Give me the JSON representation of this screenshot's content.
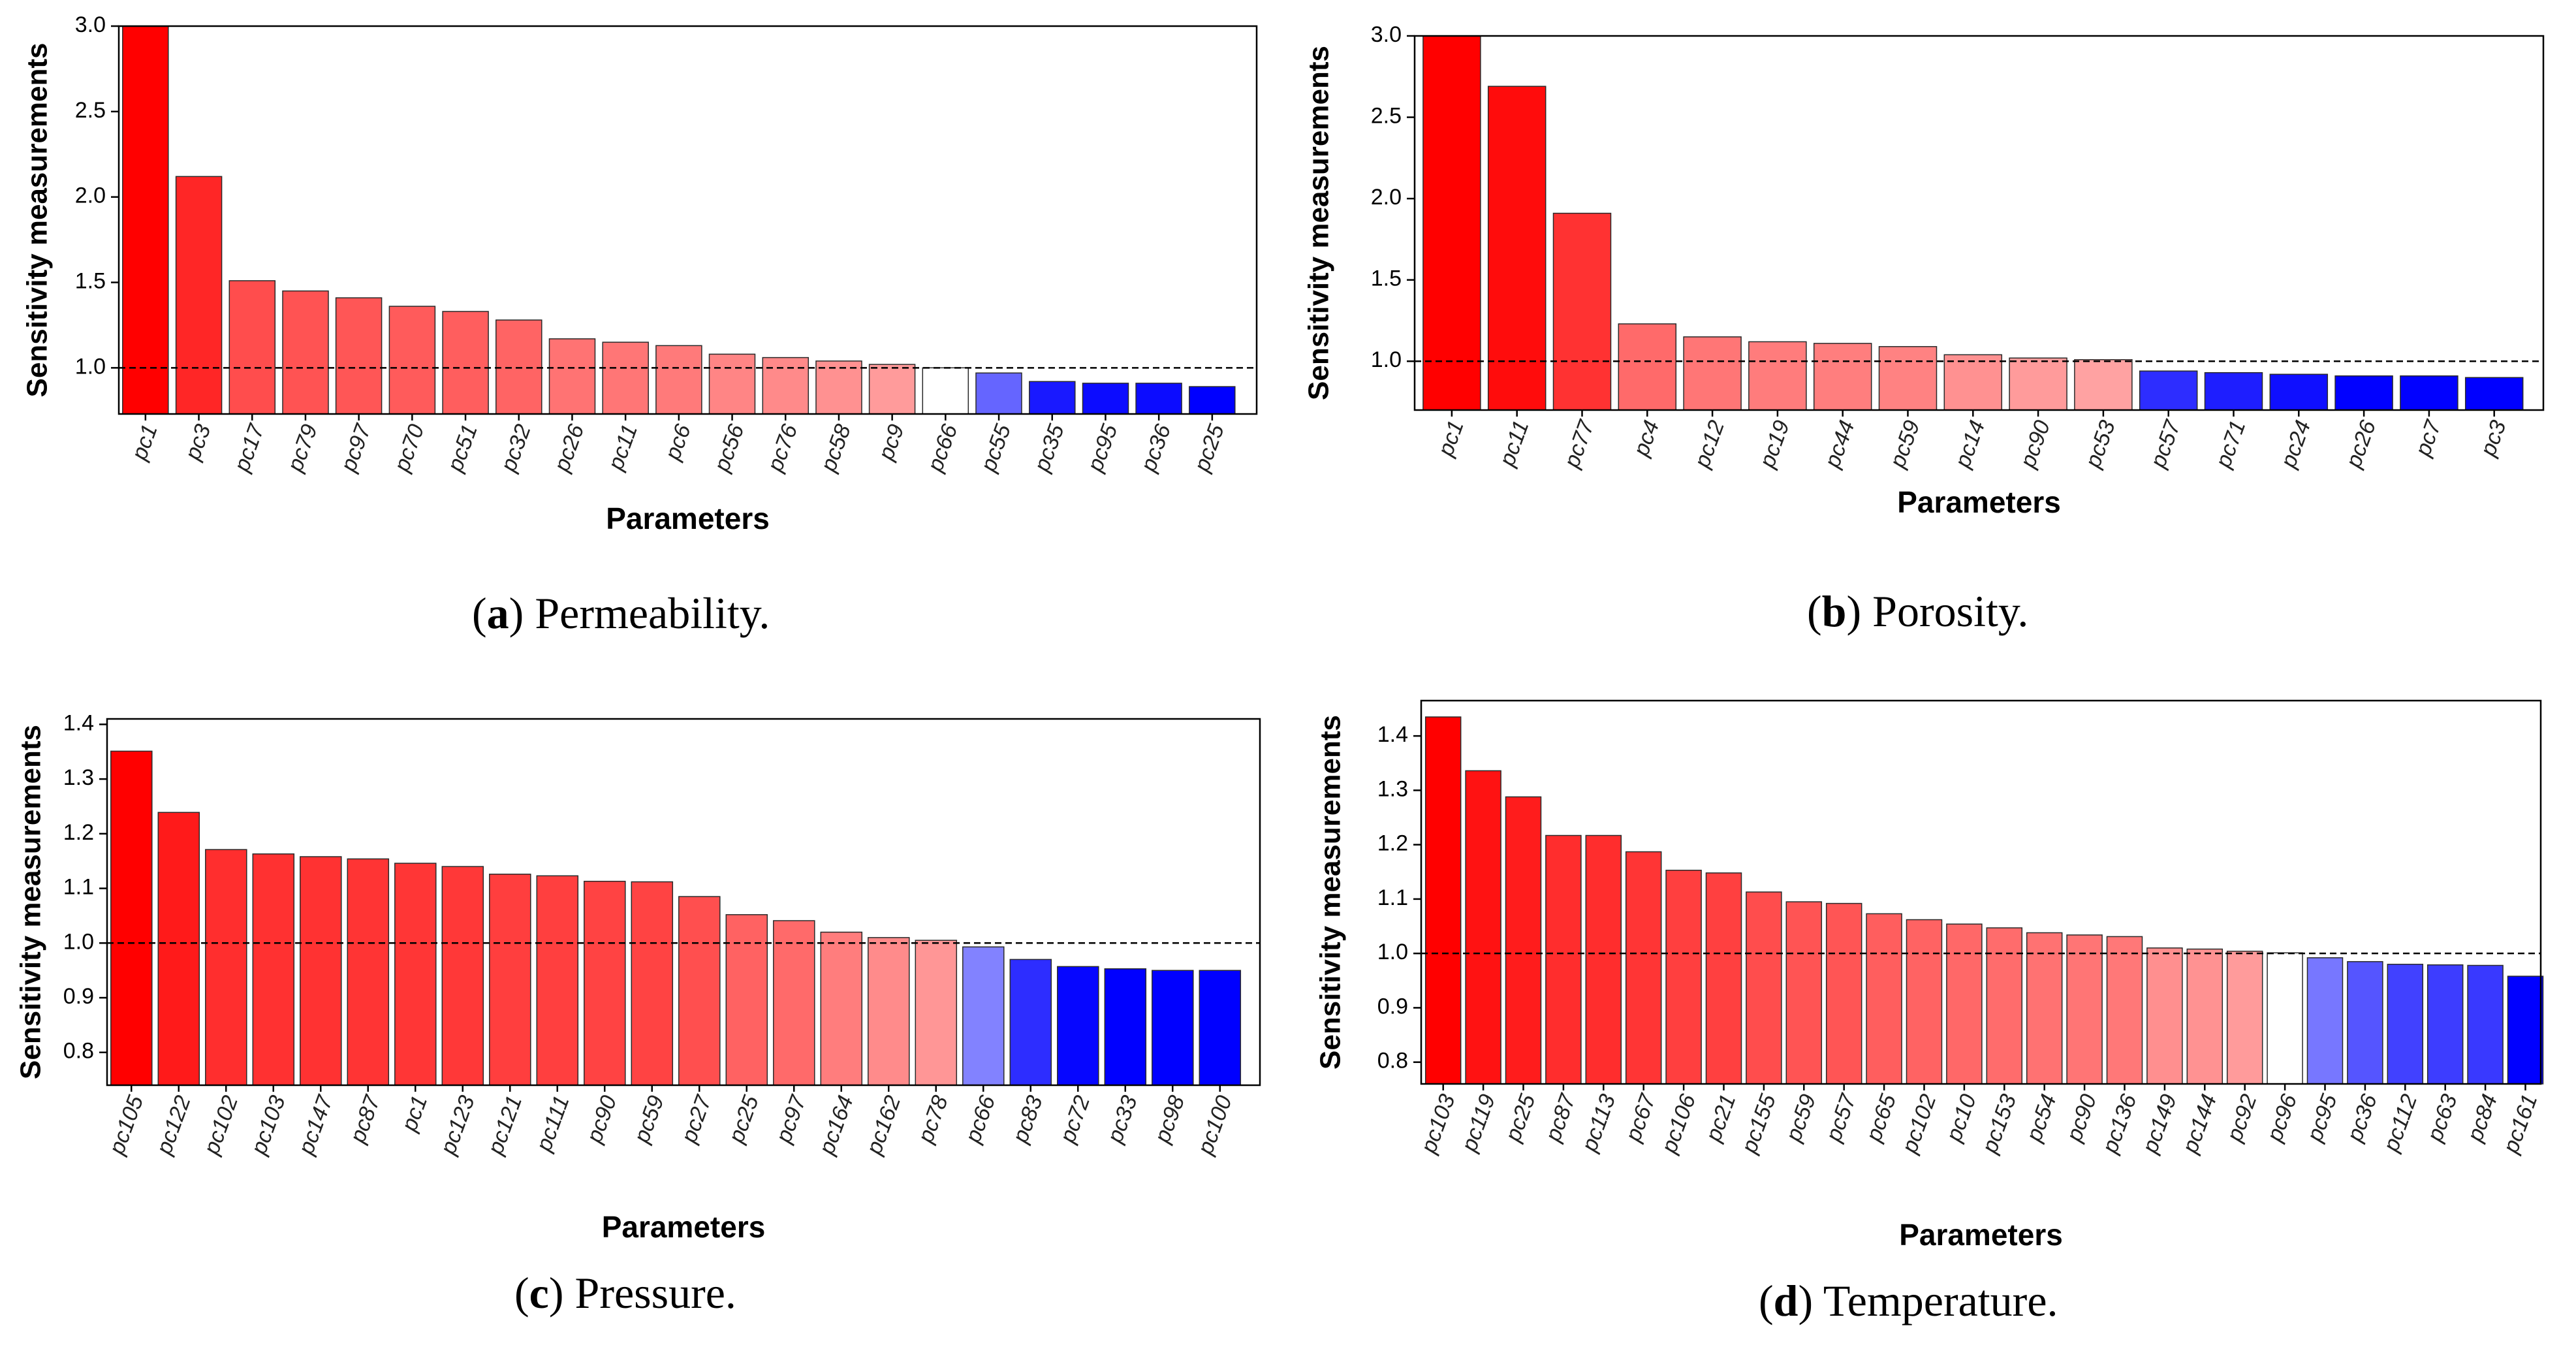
{
  "page": {
    "background": "#ffffff"
  },
  "figures": [
    {
      "id": "a",
      "caption": {
        "letter": "a",
        "text": "Permeability."
      },
      "chart_data": {
        "type": "bar",
        "title": "",
        "xlabel": "Parameters",
        "ylabel": "Sensitivity measurements",
        "categories": [
          "pc1",
          "pc3",
          "pc17",
          "pc79",
          "pc97",
          "pc70",
          "pc51",
          "pc32",
          "pc26",
          "pc11",
          "pc6",
          "pc56",
          "pc76",
          "pc58",
          "pc9",
          "pc66",
          "pc55",
          "pc35",
          "pc95",
          "pc36",
          "pc25"
        ],
        "values": [
          3.0,
          2.12,
          1.51,
          1.45,
          1.41,
          1.36,
          1.33,
          1.28,
          1.17,
          1.15,
          1.13,
          1.08,
          1.06,
          1.04,
          1.02,
          1.0,
          0.97,
          0.92,
          0.91,
          0.91,
          0.89
        ],
        "ylim": [
          0.73,
          3.0
        ],
        "yticks": [
          1.0,
          1.5,
          2.0,
          2.5,
          3.0
        ],
        "tick_labels": [
          "1.0",
          "1.5",
          "2.0",
          "2.5",
          "3.0"
        ],
        "reference_line": 1.0,
        "grid": false
      }
    },
    {
      "id": "b",
      "caption": {
        "letter": "b",
        "text": "Porosity."
      },
      "chart_data": {
        "type": "bar",
        "title": "",
        "xlabel": "Parameters",
        "ylabel": "Sensitivity measurements",
        "categories": [
          "pc1",
          "pc11",
          "pc77",
          "pc4",
          "pc12",
          "pc19",
          "pc44",
          "pc59",
          "pc14",
          "pc90",
          "pc53",
          "pc57",
          "pc71",
          "pc24",
          "pc26",
          "pc7",
          "pc3"
        ],
        "values": [
          3.0,
          2.69,
          1.91,
          1.23,
          1.15,
          1.12,
          1.11,
          1.09,
          1.04,
          1.02,
          1.01,
          0.94,
          0.93,
          0.92,
          0.91,
          0.91,
          0.9
        ],
        "ylim": [
          0.7,
          3.0
        ],
        "yticks": [
          1.0,
          1.5,
          2.0,
          2.5,
          3.0
        ],
        "tick_labels": [
          "1.0",
          "1.5",
          "2.0",
          "2.5",
          "3.0"
        ],
        "reference_line": 1.0,
        "grid": false
      }
    },
    {
      "id": "c",
      "caption": {
        "letter": "c",
        "text": "Pressure."
      },
      "chart_data": {
        "type": "bar",
        "title": "",
        "xlabel": "Parameters",
        "ylabel": "Sensitivity measurements",
        "categories": [
          "pc105",
          "pc122",
          "pc102",
          "pc103",
          "pc147",
          "pc87",
          "pc1",
          "pc123",
          "pc121",
          "pc111",
          "pc90",
          "pc59",
          "pc27",
          "pc25",
          "pc97",
          "pc164",
          "pc162",
          "pc78",
          "pc66",
          "pc83",
          "pc72",
          "pc33",
          "pc98",
          "pc100"
        ],
        "values": [
          1.351,
          1.239,
          1.171,
          1.163,
          1.158,
          1.154,
          1.146,
          1.14,
          1.126,
          1.123,
          1.113,
          1.112,
          1.085,
          1.052,
          1.041,
          1.02,
          1.01,
          1.005,
          0.993,
          0.97,
          0.957,
          0.953,
          0.95,
          0.95
        ],
        "ylim": [
          0.74,
          1.41
        ],
        "yticks": [
          0.8,
          0.9,
          1.0,
          1.1,
          1.2,
          1.3,
          1.4
        ],
        "tick_labels": [
          "0.8",
          "0.9",
          "1.0",
          "1.1",
          "1.2",
          "1.3",
          "1.4"
        ],
        "reference_line": 1.0,
        "grid": false
      }
    },
    {
      "id": "d",
      "caption": {
        "letter": "d",
        "text": "Temperature."
      },
      "chart_data": {
        "type": "bar",
        "title": "",
        "xlabel": "Parameters",
        "ylabel": "Sensitivity measurements",
        "categories": [
          "pc103",
          "pc119",
          "pc25",
          "pc87",
          "pc113",
          "pc67",
          "pc106",
          "pc21",
          "pc155",
          "pc59",
          "pc57",
          "pc65",
          "pc102",
          "pc10",
          "pc153",
          "pc54",
          "pc90",
          "pc136",
          "pc149",
          "pc144",
          "pc92",
          "pc96",
          "pc95",
          "pc36",
          "pc112",
          "pc63",
          "pc84",
          "pc161"
        ],
        "values": [
          1.435,
          1.336,
          1.288,
          1.217,
          1.217,
          1.187,
          1.153,
          1.148,
          1.113,
          1.095,
          1.092,
          1.073,
          1.062,
          1.054,
          1.047,
          1.038,
          1.034,
          1.031,
          1.01,
          1.008,
          1.004,
          1.001,
          0.992,
          0.985,
          0.98,
          0.979,
          0.978,
          0.958
        ],
        "ylim": [
          0.76,
          1.465
        ],
        "yticks": [
          0.8,
          0.9,
          1.0,
          1.1,
          1.2,
          1.3,
          1.4
        ],
        "tick_labels": [
          "0.8",
          "0.9",
          "1.0",
          "1.1",
          "1.2",
          "1.3",
          "1.4"
        ],
        "reference_line": 1.0,
        "grid": false
      }
    }
  ]
}
